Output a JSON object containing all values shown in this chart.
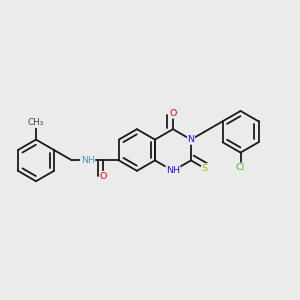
{
  "background_color": "#ebebeb",
  "bond_color": "#1a1a1a",
  "bond_width": 1.3,
  "dbo": 0.018,
  "atom_colors": {
    "N": "#1414ff",
    "O": "#ff0000",
    "S": "#bbaa00",
    "Cl": "#44bb22",
    "NH": "#4499bb",
    "C": "#1a1a1a"
  },
  "fs": 6.8,
  "b": 0.075
}
